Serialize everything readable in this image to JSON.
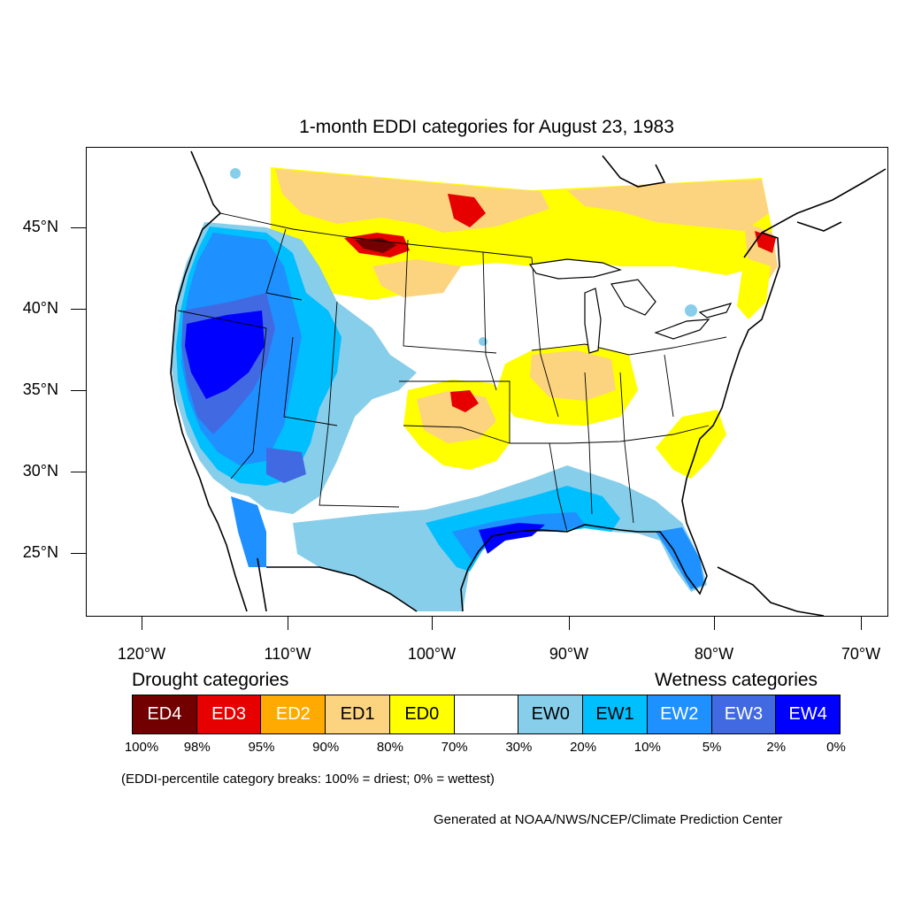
{
  "title": "1-month EDDI categories for August 23, 1983",
  "lat_ticks": [
    "45°N",
    "40°N",
    "35°N",
    "30°N",
    "25°N"
  ],
  "lon_ticks": [
    "120°W",
    "110°W",
    "100°W",
    "90°W",
    "80°W",
    "70°W"
  ],
  "legend": {
    "drought_heading": "Drought categories",
    "wetness_heading": "Wetness categories",
    "categories": [
      {
        "label": "ED4",
        "color": "#730000",
        "text_color": "#ffffff"
      },
      {
        "label": "ED3",
        "color": "#e60000",
        "text_color": "#ffffff"
      },
      {
        "label": "ED2",
        "color": "#ffaa00",
        "text_color": "#ffffff"
      },
      {
        "label": "ED1",
        "color": "#fcd37f",
        "text_color": "#000000"
      },
      {
        "label": "ED0",
        "color": "#ffff00",
        "text_color": "#000000"
      },
      {
        "label": "",
        "color": "#ffffff",
        "text_color": "#000000"
      },
      {
        "label": "EW0",
        "color": "#87ceeb",
        "text_color": "#000000"
      },
      {
        "label": "EW1",
        "color": "#00bfff",
        "text_color": "#000000"
      },
      {
        "label": "EW2",
        "color": "#1e90ff",
        "text_color": "#ffffff"
      },
      {
        "label": "EW3",
        "color": "#4169e1",
        "text_color": "#ffffff"
      },
      {
        "label": "EW4",
        "color": "#0000ff",
        "text_color": "#ffffff"
      }
    ],
    "breaks": [
      "100%",
      "98%",
      "95%",
      "90%",
      "80%",
      "70%",
      "30%",
      "20%",
      "10%",
      "5%",
      "2%",
      "0%"
    ]
  },
  "note": "(EDDI-percentile category breaks: 100% = driest; 0% = wettest)",
  "credit": "Generated at NOAA/NWS/NCEP/Climate Prediction Center"
}
